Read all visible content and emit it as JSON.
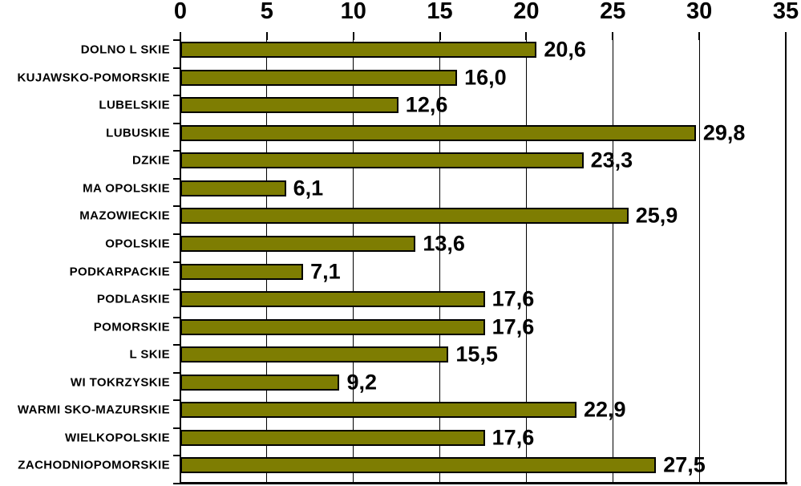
{
  "chart_data": {
    "type": "bar",
    "orientation": "horizontal",
    "title": "",
    "xlabel": "",
    "ylabel": "",
    "categories": [
      "DOLNO L SKIE",
      "KUJAWSKO-POMORSKIE",
      "LUBELSKIE",
      "LUBUSKIE",
      "DZKIE",
      "MA OPOLSKIE",
      "MAZOWIECKIE",
      "OPOLSKIE",
      "PODKARPACKIE",
      "PODLASKIE",
      "POMORSKIE",
      "L SKIE",
      "WI TOKRZYSKIE",
      "WARMI SKO-MAZURSKIE",
      "WIELKOPOLSKIE",
      "ZACHODNIOPOMORSKIE"
    ],
    "values": [
      20.6,
      16.0,
      12.6,
      29.8,
      23.3,
      6.1,
      25.9,
      13.6,
      7.1,
      17.6,
      17.6,
      15.5,
      9.2,
      22.9,
      17.6,
      27.5
    ],
    "value_labels": [
      "20,6",
      "16,0",
      "12,6",
      "29,8",
      "23,3",
      "6,1",
      "25,9",
      "13,6",
      "7,1",
      "17,6",
      "17,6",
      "15,5",
      "9,2",
      "22,9",
      "17,6",
      "27,5"
    ],
    "x_ticks": [
      0,
      5,
      10,
      15,
      20,
      25,
      30,
      35
    ],
    "x_tick_labels": [
      "0",
      "5",
      "10",
      "15",
      "20",
      "25",
      "30",
      "35"
    ],
    "xlim": [
      0,
      35
    ],
    "grid": true,
    "legend_position": "none",
    "bar_color": "#7e7d02",
    "bar_border_color": "#000000",
    "axis_color": "#000000",
    "text_color": "#000000",
    "background_color": "#ffffff"
  }
}
